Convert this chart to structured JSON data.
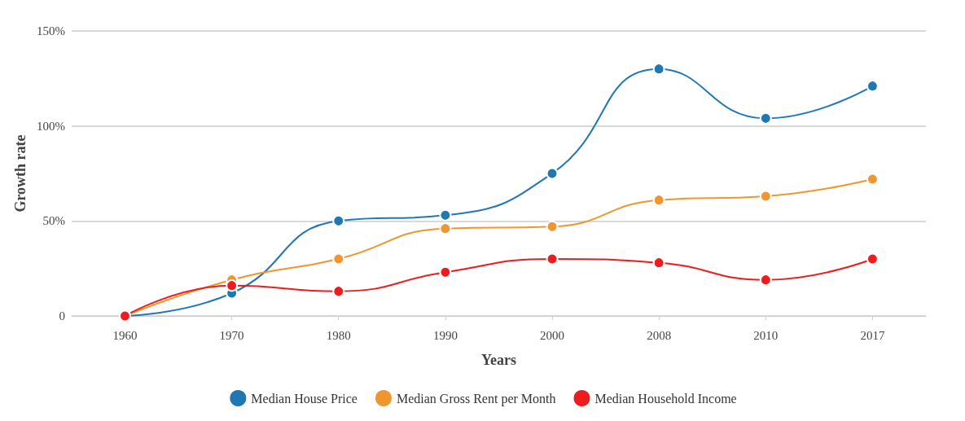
{
  "chart_data": {
    "type": "line",
    "xlabel": "Years",
    "ylabel": "Growth rate",
    "categories": [
      "1960",
      "1970",
      "1980",
      "1990",
      "2000",
      "2008",
      "2010",
      "2017"
    ],
    "series": [
      {
        "name": "Median House Price",
        "color": "#1f77b4",
        "values": [
          0,
          12,
          50,
          53,
          75,
          130,
          104,
          121
        ]
      },
      {
        "name": "Median Gross Rent per Month",
        "color": "#f0962e",
        "values": [
          0,
          19,
          30,
          46,
          47,
          61,
          63,
          72
        ]
      },
      {
        "name": "Median Household Income",
        "color": "#ee1c1c",
        "values": [
          0,
          16,
          13,
          23,
          30,
          28,
          19,
          30
        ]
      }
    ],
    "ylim": [
      0,
      150
    ],
    "yticks": [
      {
        "value": 0,
        "label": "0"
      },
      {
        "value": 50,
        "label": "50%"
      },
      {
        "value": 100,
        "label": "100%"
      },
      {
        "value": 150,
        "label": "150%"
      }
    ],
    "grid": "y",
    "legend": "bottom",
    "marker": "circle",
    "line_style": "solid"
  }
}
